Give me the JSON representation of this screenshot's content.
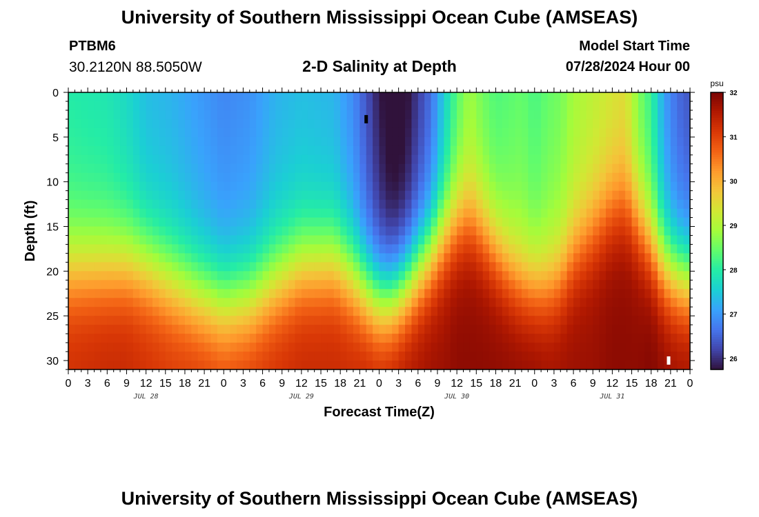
{
  "header": {
    "title": "University of Southern Mississippi Ocean Cube (AMSEAS)",
    "station": "PTBM6",
    "coords": "30.2120N  88.5050W",
    "subtitle": "2-D Salinity at Depth",
    "model_start_label": "Model Start Time",
    "model_start_value": "07/28/2024 Hour 00"
  },
  "footer": {
    "title": "University of Southern Mississippi Ocean Cube (AMSEAS)"
  },
  "colors": {
    "colormap": [
      "#30123b",
      "#4145ab",
      "#4675ed",
      "#39a2fc",
      "#1bcfd4",
      "#24eca6",
      "#61fc6c",
      "#a4fc3b",
      "#d1e834",
      "#f3c63a",
      "#fe9b2d",
      "#f36315",
      "#d93806",
      "#b11901",
      "#7a0403"
    ]
  },
  "chart_data": {
    "type": "heatmap",
    "title": "2-D Salinity at Depth",
    "xlabel": "Forecast Time(Z)",
    "ylabel": "Depth (ft)",
    "x_unit": "forecast hours from 07/28/2024 00Z",
    "xlim": [
      0,
      96
    ],
    "ylim": [
      0,
      31
    ],
    "x_ticks": [
      0,
      3,
      6,
      9,
      12,
      15,
      18,
      21,
      24,
      27,
      30,
      33,
      36,
      39,
      42,
      45,
      48,
      51,
      54,
      57,
      60,
      63,
      66,
      69,
      72,
      75,
      78,
      81,
      84,
      87,
      90,
      93,
      96
    ],
    "x_tick_labels": [
      "0",
      "3",
      "6",
      "9",
      "12",
      "15",
      "18",
      "21",
      "0",
      "3",
      "6",
      "9",
      "12",
      "15",
      "18",
      "21",
      "0",
      "3",
      "6",
      "9",
      "12",
      "15",
      "18",
      "21",
      "0",
      "3",
      "6",
      "9",
      "12",
      "15",
      "18",
      "21",
      "0"
    ],
    "y_ticks": [
      0,
      5,
      10,
      15,
      20,
      25,
      30
    ],
    "y_tick_labels": [
      "0",
      "5",
      "10",
      "15",
      "20",
      "25",
      "30"
    ],
    "date_labels": [
      {
        "hour": 12,
        "text": "JUL 28"
      },
      {
        "hour": 36,
        "text": "JUL 29"
      },
      {
        "hour": 60,
        "text": "JUL 30"
      },
      {
        "hour": 84,
        "text": "JUL 31"
      }
    ],
    "colorbar": {
      "unit": "psu",
      "min": 25.75,
      "max": 32,
      "ticks": [
        26,
        27,
        28,
        29,
        30,
        31,
        32
      ],
      "tick_labels": [
        "26",
        "27",
        "28",
        "29",
        "30",
        "31",
        "32"
      ]
    },
    "field": {
      "description": "Salinity (psu) estimated per forecast hour: surface layer value, halocline depth (ft) and deep-layer value",
      "hours": [
        0,
        6,
        9,
        12,
        16,
        20,
        24,
        28,
        32,
        36,
        41,
        44,
        46,
        48,
        50,
        52,
        56,
        58,
        60,
        62,
        64,
        66,
        68,
        70,
        72,
        74,
        76,
        78,
        81,
        84,
        86,
        88,
        90,
        92,
        94,
        96
      ],
      "surface_psu": [
        28.2,
        28.1,
        27.9,
        27.6,
        27.5,
        27.3,
        27.1,
        27.2,
        27.5,
        27.6,
        27.5,
        27.1,
        26.6,
        26.1,
        25.8,
        25.9,
        26.8,
        27.7,
        28.5,
        29.0,
        28.7,
        28.5,
        28.6,
        28.7,
        28.5,
        28.7,
        28.8,
        29.1,
        29.3,
        29.5,
        29.6,
        28.8,
        28.3,
        27.3,
        26.8,
        26.6
      ],
      "halocline_ft": [
        19.5,
        19.3,
        19.0,
        19.5,
        21.0,
        22.5,
        23.5,
        23.0,
        21.0,
        19.2,
        18.8,
        20.5,
        22.0,
        23.0,
        22.8,
        21.5,
        18.0,
        16.0,
        14.5,
        14.0,
        15.5,
        17.5,
        19.5,
        21.0,
        21.5,
        21.5,
        20.5,
        18.0,
        15.5,
        13.0,
        12.5,
        14.5,
        17.0,
        19.5,
        20.5,
        21.0
      ],
      "deep_psu": [
        31.1,
        31.2,
        31.2,
        31.1,
        31.0,
        31.0,
        30.9,
        31.0,
        31.1,
        31.2,
        31.2,
        31.2,
        31.3,
        31.3,
        31.4,
        31.5,
        31.6,
        31.6,
        31.7,
        31.7,
        31.7,
        31.7,
        31.7,
        31.7,
        31.7,
        31.6,
        31.6,
        31.6,
        31.6,
        31.7,
        31.7,
        31.7,
        31.8,
        31.7,
        31.6,
        31.6
      ]
    },
    "markers": [
      {
        "name": "min-salinity-marker",
        "hour": 46,
        "depth_ft": 3,
        "color": "#000000"
      },
      {
        "name": "max-salinity-marker",
        "hour": 92.7,
        "depth_ft": 30,
        "color": "#ffffff"
      }
    ]
  }
}
